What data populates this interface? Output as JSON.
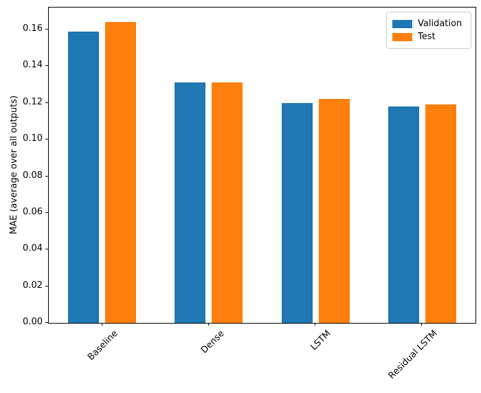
{
  "figure": {
    "background": "#ffffff",
    "spine_color": "#000000"
  },
  "chart_data": {
    "type": "bar",
    "title": "",
    "xlabel": "",
    "ylabel": "MAE (average over all outputs)",
    "categories": [
      "Baseline",
      "Dense",
      "LSTM",
      "Residual LSTM"
    ],
    "series": [
      {
        "name": "Validation",
        "color": "#1f77b4",
        "values": [
          0.159,
          0.131,
          0.12,
          0.118
        ]
      },
      {
        "name": "Test",
        "color": "#ff7f0e",
        "values": [
          0.164,
          0.131,
          0.122,
          0.119
        ]
      }
    ],
    "ylim": [
      0,
      0.172
    ],
    "yticks": [
      0.0,
      0.02,
      0.04,
      0.06,
      0.08,
      0.1,
      0.12,
      0.14,
      0.16
    ],
    "ytick_labels": [
      "0.00",
      "0.02",
      "0.04",
      "0.06",
      "0.08",
      "0.10",
      "0.12",
      "0.14",
      "0.16"
    ],
    "xtick_rotation_deg": 45,
    "grid": false,
    "legend_position": "upper right"
  }
}
